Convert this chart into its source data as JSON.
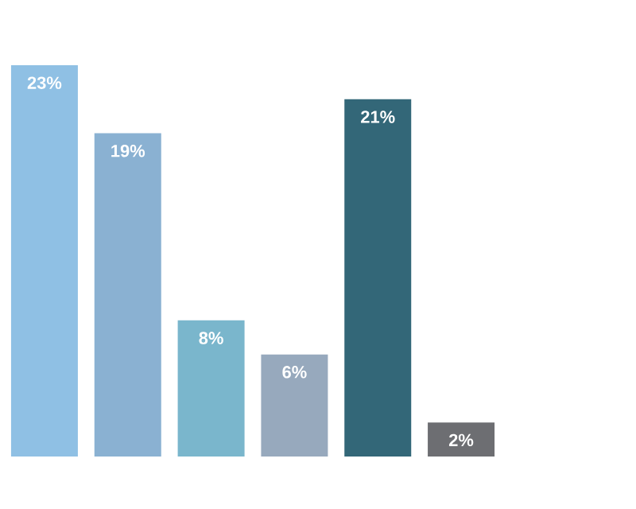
{
  "chart_data": {
    "type": "bar",
    "categories": [
      null,
      null,
      null,
      null,
      null,
      null
    ],
    "values": [
      23,
      19,
      8,
      6,
      21,
      2
    ],
    "colors": [
      "#8fc0e4",
      "#8ab1d2",
      "#7ab6cc",
      "#97a9bd",
      "#336778",
      "#6d6e72"
    ],
    "value_labels": [
      "23%",
      "19%",
      "8%",
      "6%",
      "21%",
      "2%"
    ]
  }
}
